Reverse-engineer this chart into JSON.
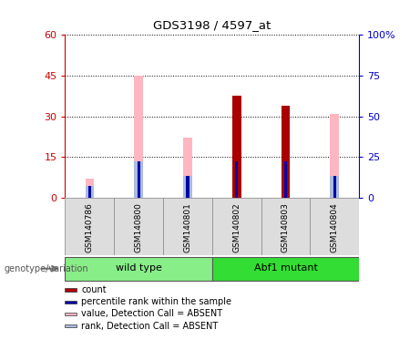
{
  "title": "GDS3198 / 4597_at",
  "samples": [
    "GSM140786",
    "GSM140800",
    "GSM140801",
    "GSM140802",
    "GSM140803",
    "GSM140804"
  ],
  "groups": [
    {
      "name": "wild type",
      "indices": [
        0,
        1,
        2
      ],
      "color": "#88EE88"
    },
    {
      "name": "Abf1 mutant",
      "indices": [
        3,
        4,
        5
      ],
      "color": "#33DD33"
    }
  ],
  "left_ylim": [
    0,
    60
  ],
  "right_ylim": [
    0,
    100
  ],
  "left_yticks": [
    0,
    15,
    30,
    45,
    60
  ],
  "right_yticks": [
    0,
    25,
    50,
    75,
    100
  ],
  "left_tick_labels": [
    "0",
    "15",
    "30",
    "45",
    "60"
  ],
  "right_tick_labels": [
    "0",
    "25",
    "50",
    "75",
    "100%"
  ],
  "left_axis_color": "#CC0000",
  "right_axis_color": "#0000CC",
  "count_bars": [
    0,
    0,
    0,
    37.5,
    34.0,
    0
  ],
  "percentile_bars": [
    4.5,
    13.5,
    8.0,
    13.5,
    13.5,
    8.0
  ],
  "absent_value_bars": [
    7.0,
    45.0,
    22.0,
    0,
    0,
    31.0
  ],
  "absent_rank_bars": [
    4.5,
    13.5,
    8.0,
    0,
    0,
    8.0
  ],
  "count_color": "#AA0000",
  "percentile_color": "#0000AA",
  "absent_value_color": "#FFB6C1",
  "absent_rank_color": "#AABBDD",
  "legend_items": [
    {
      "color": "#AA0000",
      "label": "count"
    },
    {
      "color": "#0000AA",
      "label": "percentile rank within the sample"
    },
    {
      "color": "#FFB6C1",
      "label": "value, Detection Call = ABSENT"
    },
    {
      "color": "#AABBDD",
      "label": "rank, Detection Call = ABSENT"
    }
  ],
  "genotype_label": "genotype/variation",
  "sample_bg_color": "#DDDDDD",
  "plot_bg_color": "#FFFFFF",
  "grid_color": "#000000",
  "main_bar_width": 0.18,
  "pct_bar_width": 0.06
}
